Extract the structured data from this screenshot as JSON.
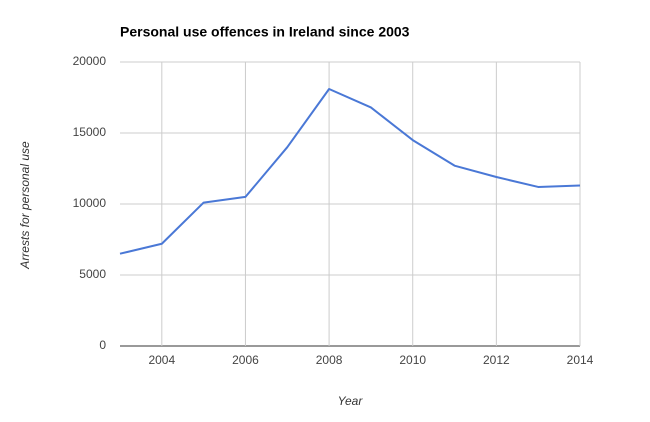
{
  "chart_data": {
    "type": "line",
    "title": "Personal use offences in Ireland since 2003",
    "x_label": "Year",
    "y_label": "Arrests for personal use",
    "x": [
      2003,
      2004,
      2005,
      2006,
      2007,
      2008,
      2009,
      2010,
      2011,
      2012,
      2013,
      2014
    ],
    "values": [
      6500,
      7200,
      10100,
      10500,
      14000,
      18100,
      16800,
      14500,
      12700,
      11900,
      11200,
      11300
    ],
    "color": "#4a78d6",
    "xlim": [
      2003,
      2014
    ],
    "xticks": [
      2004,
      2006,
      2008,
      2010,
      2012,
      2014
    ],
    "ylim": [
      0,
      20000
    ],
    "yticks": [
      0,
      5000,
      10000,
      15000,
      20000
    ],
    "grid": true
  }
}
